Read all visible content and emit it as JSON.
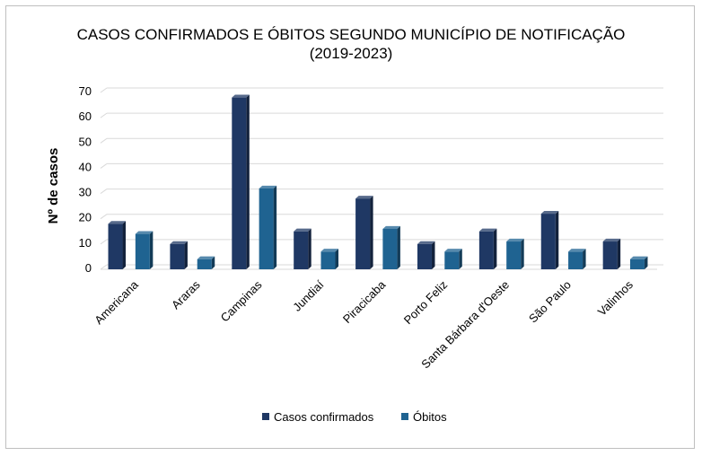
{
  "chart_data": {
    "type": "bar",
    "title": "CASOS CONFIRMADOS E ÓBITOS SEGUNDO MUNICÍPIO DE NOTIFICAÇÃO",
    "subtitle": "(2019-2023)",
    "ylabel": "Nº de casos",
    "xlabel": "",
    "ylim": [
      0,
      70
    ],
    "yticks": [
      0,
      10,
      20,
      30,
      40,
      50,
      60,
      70
    ],
    "grid": true,
    "legend_position": "bottom",
    "categories": [
      "Americana",
      "Araras",
      "Campinas",
      "Jundiaí",
      "Piracicaba",
      "Porto Feliz",
      "Santa Bárbara d'Oeste",
      "São Paulo",
      "Valinhos"
    ],
    "series": [
      {
        "name": "Casos confirmados",
        "color": "#1f3864",
        "values": [
          18,
          10,
          68,
          15,
          28,
          10,
          15,
          22,
          11
        ]
      },
      {
        "name": "Óbitos",
        "color": "#1f6391",
        "values": [
          14,
          4,
          32,
          7,
          16,
          7,
          11,
          7,
          4
        ]
      }
    ]
  }
}
